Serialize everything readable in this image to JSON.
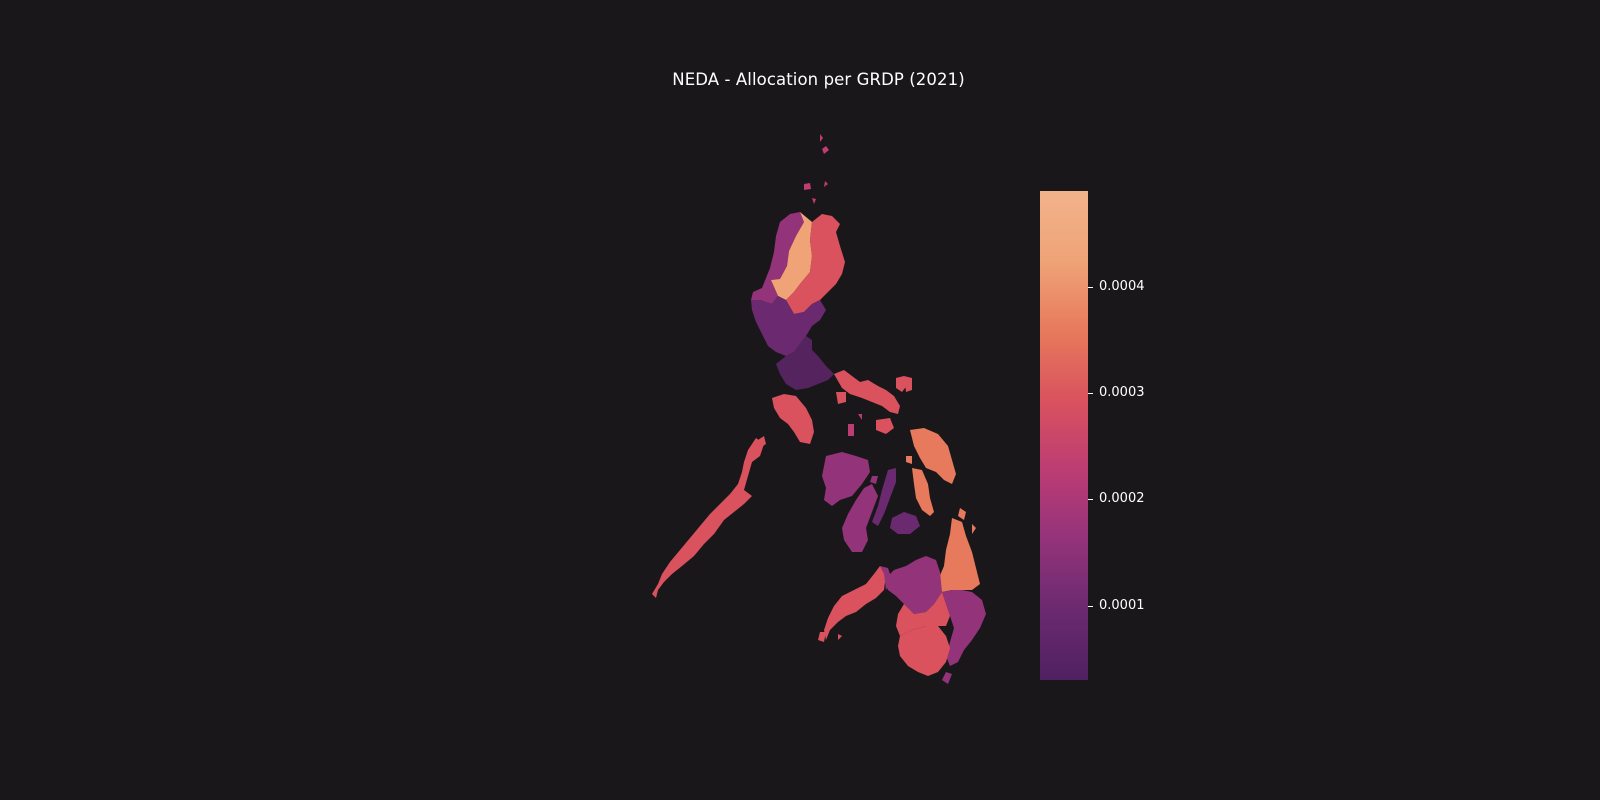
{
  "title": "NEDA - Allocation per GRDP (2021)",
  "colorbar": {
    "colormap": "flare",
    "vmin": 3e-05,
    "vmax": 0.00049,
    "stops": [
      "#4f2160",
      "#6b2a6f",
      "#93337a",
      "#bc3c74",
      "#d9525e",
      "#e77a5c",
      "#efa377",
      "#f2b38a"
    ],
    "ticks": [
      {
        "value": 0.0001,
        "label": "0.0001"
      },
      {
        "value": 0.0002,
        "label": "0.0002"
      },
      {
        "value": 0.0003,
        "label": "0.0003"
      },
      {
        "value": 0.0004,
        "label": "0.0004"
      }
    ]
  },
  "background_color": "#1a171b"
}
